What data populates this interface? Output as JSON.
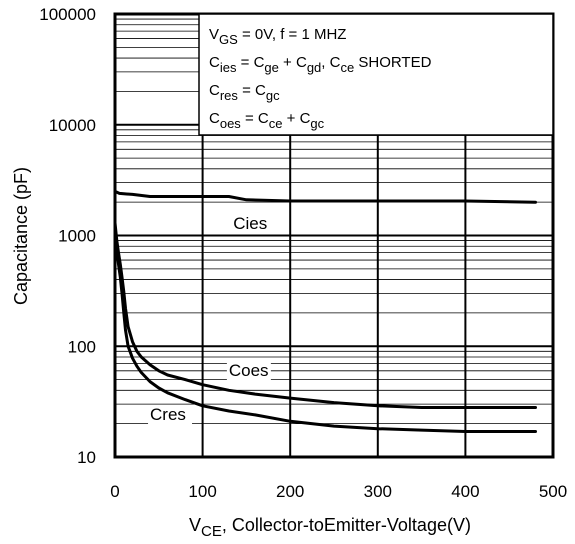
{
  "chart_data": {
    "type": "line",
    "y_scale": "log",
    "xlim": [
      0,
      500
    ],
    "ylim": [
      10,
      100000
    ],
    "x_ticks": [
      0,
      100,
      200,
      300,
      400,
      500
    ],
    "x_tick_labels": [
      "0",
      "100",
      "200",
      "300",
      "400",
      "500"
    ],
    "y_ticks": [
      10,
      100,
      1000,
      10000,
      100000
    ],
    "y_tick_labels": [
      "10",
      "100",
      "1000",
      "10000",
      "100000"
    ],
    "ylabel": "Capacitance (pF)",
    "xlabel_main": "V",
    "xlabel_sub": "CE",
    "xlabel_rest": ", Collector-toEmitter-Voltage(V)",
    "grid": true,
    "series": [
      {
        "name": "Cies",
        "x": [
          0,
          5,
          10,
          20,
          40,
          80,
          130,
          150,
          200,
          300,
          400,
          480
        ],
        "y": [
          2500,
          2400,
          2380,
          2350,
          2250,
          2250,
          2250,
          2100,
          2050,
          2050,
          2050,
          2000
        ]
      },
      {
        "name": "Coes",
        "x": [
          0,
          2,
          4,
          6,
          8,
          10,
          12,
          15,
          20,
          25,
          30,
          40,
          50,
          60,
          80,
          100,
          130,
          160,
          200,
          250,
          300,
          350,
          400,
          480
        ],
        "y": [
          1300,
          900,
          700,
          550,
          420,
          310,
          220,
          150,
          110,
          90,
          80,
          68,
          60,
          55,
          50,
          45,
          40,
          37,
          34,
          31,
          29,
          28,
          28,
          28
        ]
      },
      {
        "name": "Cres",
        "x": [
          0,
          2,
          4,
          6,
          8,
          10,
          12,
          15,
          20,
          25,
          30,
          40,
          50,
          60,
          80,
          100,
          130,
          160,
          200,
          250,
          300,
          350,
          400,
          480
        ],
        "y": [
          1000,
          750,
          550,
          420,
          300,
          200,
          140,
          100,
          78,
          66,
          58,
          48,
          42,
          38,
          33,
          29,
          26,
          24,
          21,
          19,
          18,
          17.5,
          17,
          17
        ]
      }
    ],
    "series_labels": [
      {
        "text": "Cies",
        "x": 135,
        "y": 1150
      },
      {
        "text": "Coes",
        "x": 130,
        "y": 54
      },
      {
        "text": "Cres",
        "x": 40,
        "y": 21.5
      }
    ],
    "legend": {
      "placement": "top-right",
      "lines": [
        [
          {
            "t": "V"
          },
          {
            "t": "GS",
            "sub": true
          },
          {
            "t": "  = 0V,      f = 1 MHZ"
          }
        ],
        [
          {
            "t": "C"
          },
          {
            "t": "ies",
            "sub": true
          },
          {
            "t": "  = C"
          },
          {
            "t": "ge",
            "sub": true
          },
          {
            "t": " + C"
          },
          {
            "t": "gd",
            "sub": true
          },
          {
            "t": ",  C"
          },
          {
            "t": "ce",
            "sub": true
          },
          {
            "t": " SHORTED"
          }
        ],
        [
          {
            "t": "C"
          },
          {
            "t": "res",
            "sub": true
          },
          {
            "t": "  = C"
          },
          {
            "t": "gc",
            "sub": true
          }
        ],
        [
          {
            "t": "C"
          },
          {
            "t": "oes",
            "sub": true
          },
          {
            "t": "  = C"
          },
          {
            "t": "ce",
            "sub": true
          },
          {
            "t": " + C"
          },
          {
            "t": "gc",
            "sub": true
          }
        ]
      ]
    }
  }
}
